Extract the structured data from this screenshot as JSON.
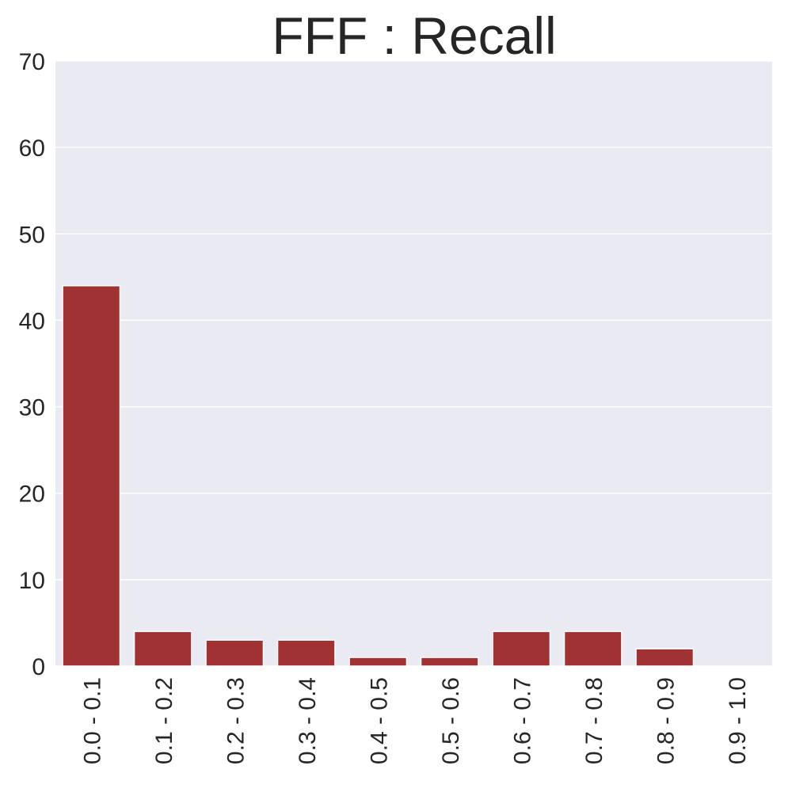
{
  "chart_data": {
    "type": "bar",
    "title": "FFF : Recall",
    "xlabel": "",
    "ylabel": "",
    "categories": [
      "0.0 - 0.1",
      "0.1 - 0.2",
      "0.2 - 0.3",
      "0.3 - 0.4",
      "0.4 - 0.5",
      "0.5 - 0.6",
      "0.6 - 0.7",
      "0.7 - 0.8",
      "0.8 - 0.9",
      "0.9 - 1.0"
    ],
    "values": [
      44,
      4,
      3,
      3,
      1,
      1,
      4,
      4,
      2,
      0
    ],
    "ylim": [
      0,
      70
    ],
    "yticks": [
      0,
      10,
      20,
      30,
      40,
      50,
      60,
      70
    ],
    "grid": true,
    "bar_color": "#a03234",
    "background_color": "#eaeaf2"
  }
}
